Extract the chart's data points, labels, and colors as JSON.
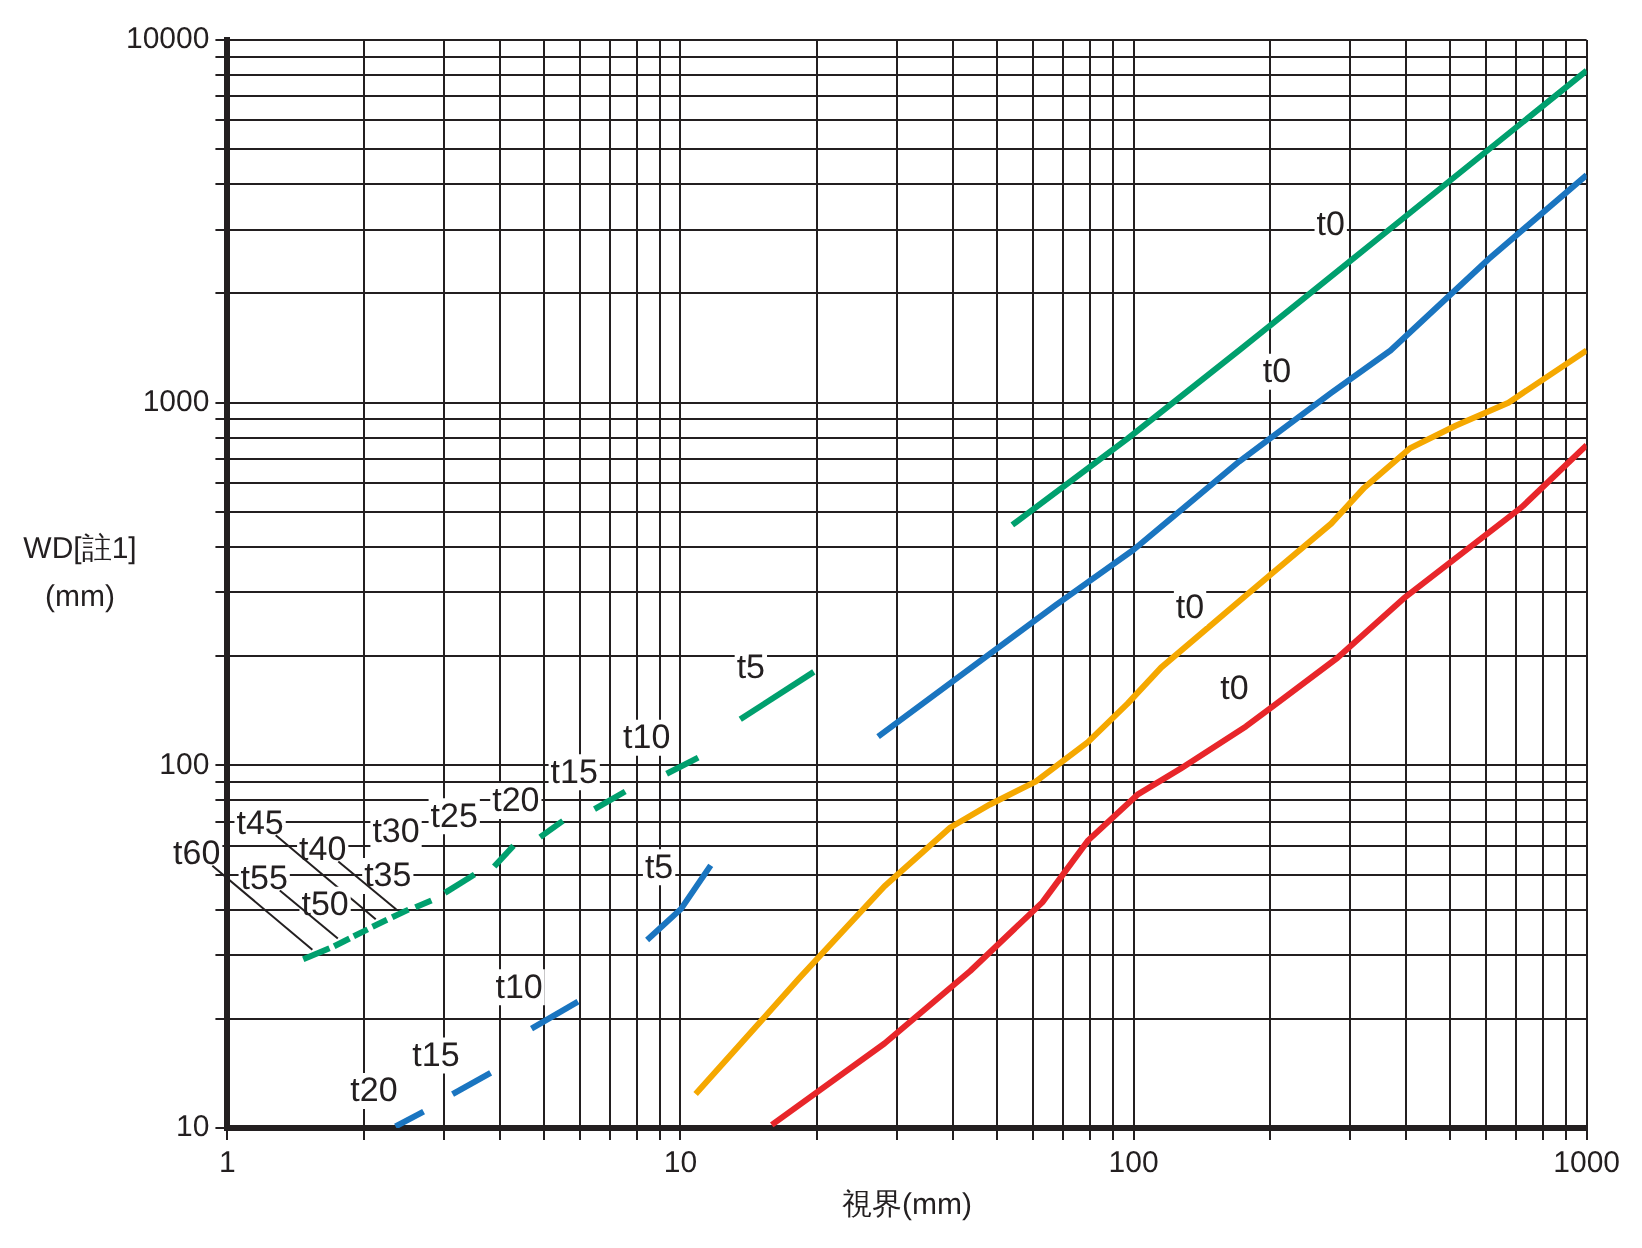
{
  "chart_data": {
    "type": "line",
    "xlabel": "視界(mm)",
    "ylabel": "WD[註1] (mm)",
    "log": "xy",
    "grid": true,
    "line_style": "solid",
    "xlim": [
      1,
      1000
    ],
    "ylim": [
      10,
      10000
    ],
    "xticks": [
      1,
      {
        "value": 2,
        "label": null
      },
      {
        "value": 3,
        "label": null
      },
      {
        "value": 4,
        "label": null
      },
      {
        "value": 5,
        "label": null
      },
      {
        "value": 6,
        "label": null
      },
      {
        "value": 7,
        "label": null
      },
      {
        "value": 8,
        "label": null
      },
      {
        "value": 9,
        "label": null
      },
      10,
      {
        "value": 20,
        "label": null
      },
      {
        "value": 30,
        "label": null
      },
      {
        "value": 40,
        "label": null
      },
      {
        "value": 50,
        "label": null
      },
      {
        "value": 60,
        "label": null
      },
      {
        "value": 70,
        "label": null
      },
      {
        "value": 80,
        "label": null
      },
      {
        "value": 90,
        "label": null
      },
      100,
      {
        "value": 200,
        "label": null
      },
      {
        "value": 300,
        "label": null
      },
      {
        "value": 400,
        "label": null
      },
      {
        "value": 500,
        "label": null
      },
      {
        "value": 600,
        "label": null
      },
      {
        "value": 700,
        "label": null
      },
      {
        "value": 800,
        "label": null
      },
      {
        "value": 900,
        "label": null
      },
      1000
    ],
    "yticks": [
      10,
      {
        "value": 20,
        "label": null
      },
      {
        "value": 30,
        "label": null
      },
      {
        "value": 40,
        "label": null
      },
      {
        "value": 50,
        "label": null
      },
      {
        "value": 60,
        "label": null
      },
      {
        "value": 70,
        "label": null
      },
      {
        "value": 80,
        "label": null
      },
      {
        "value": 90,
        "label": null
      },
      100,
      {
        "value": 200,
        "label": null
      },
      {
        "value": 300,
        "label": null
      },
      {
        "value": 400,
        "label": null
      },
      {
        "value": 500,
        "label": null
      },
      {
        "value": 600,
        "label": null
      },
      {
        "value": 700,
        "label": null
      },
      {
        "value": 800,
        "label": null
      },
      {
        "value": 900,
        "label": null
      },
      1000,
      {
        "value": 2000,
        "label": null
      },
      {
        "value": 3000,
        "label": null
      },
      {
        "value": 4000,
        "label": null
      },
      {
        "value": 5000,
        "label": null
      },
      {
        "value": 6000,
        "label": null
      },
      {
        "value": 7000,
        "label": null
      },
      {
        "value": 8000,
        "label": null
      },
      {
        "value": 9000,
        "label": null
      },
      10000
    ],
    "series": [
      {
        "name": "t0",
        "color": "#00a06e",
        "x": [
          54,
          97,
          171,
          345,
          1000
        ],
        "values": [
          460,
          796,
          1393,
          2822,
          8230
        ]
      },
      {
        "name": "t0",
        "color": "#1a75c0",
        "x": [
          27.3,
          67.2,
          100,
          171,
          273,
          369,
          608,
          1000
        ],
        "values": [
          120,
          276,
          393,
          688,
          1064,
          1393,
          2490,
          4240
        ]
      },
      {
        "name": "t0",
        "color": "#f5a800",
        "x": [
          10.8,
          18.3,
          28.2,
          39.4,
          48.2,
          60.8,
          79.4,
          97,
          115,
          177,
          273,
          323,
          407,
          515,
          672,
          1000
        ],
        "values": [
          12.4,
          25.9,
          46.4,
          67.4,
          78,
          90.2,
          116,
          148,
          186,
          294,
          464,
          583,
          748,
          865,
          1000,
          1393
        ]
      },
      {
        "name": "t0",
        "color": "#e8262a",
        "x": [
          15.9,
          28.2,
          43.6,
          62.9,
          79.4,
          102,
          127,
          177,
          282,
          394,
          719,
          1000
        ],
        "values": [
          10.2,
          17.1,
          27.1,
          41.9,
          62.1,
          83,
          97.9,
          128,
          198,
          288,
          515,
          763
        ]
      },
      {
        "name": "t5",
        "color": "#00a06e",
        "x": [
          13.55,
          19.69
        ],
        "values": [
          134,
          181
        ]
      },
      {
        "name": "t10",
        "color": "#00a06e",
        "x": [
          9.32,
          10.94
        ],
        "values": [
          94.8,
          105
        ]
      },
      {
        "name": "t15",
        "color": "#00a06e",
        "x": [
          6.46,
          7.55
        ],
        "values": [
          75.7,
          84.7
        ]
      },
      {
        "name": "t20",
        "color": "#00a06e",
        "x": [
          4.9,
          5.5
        ],
        "values": [
          63.4,
          70.3
        ]
      },
      {
        "name": "t25",
        "color": "#00a06e",
        "x": [
          3.88,
          4.28
        ],
        "values": [
          52.6,
          60
        ]
      },
      {
        "name": "t30",
        "color": "#00a06e",
        "x": [
          3.02,
          3.51
        ],
        "values": [
          44.5,
          50
        ]
      },
      {
        "name": "t35",
        "color": "#00a06e",
        "x": [
          2.6,
          2.82
        ],
        "values": [
          40.6,
          42.4
        ]
      },
      {
        "name": "t40",
        "color": "#00a06e",
        "x": [
          2.31,
          2.51
        ],
        "values": [
          38.1,
          40
        ]
      },
      {
        "name": "t45",
        "color": "#00a06e",
        "x": [
          2.09,
          2.25
        ],
        "values": [
          35.9,
          37.5
        ]
      },
      {
        "name": "t50",
        "color": "#00a06e",
        "x": [
          1.9,
          2.04
        ],
        "values": [
          33.8,
          35.3
        ]
      },
      {
        "name": "t55",
        "color": "#00a06e",
        "x": [
          1.72,
          1.86
        ],
        "values": [
          31.7,
          33.3
        ]
      },
      {
        "name": "t60",
        "color": "#00a06e",
        "x": [
          1.47,
          1.68
        ],
        "values": [
          29.2,
          31.3
        ]
      },
      {
        "name": "t5",
        "color": "#1a75c0",
        "x": [
          8.44,
          10.03,
          11.66
        ],
        "values": [
          33,
          40.2,
          53
        ]
      },
      {
        "name": "t10",
        "color": "#1a75c0",
        "x": [
          4.69,
          5.94
        ],
        "values": [
          18.8,
          22.3
        ]
      },
      {
        "name": "t15",
        "color": "#1a75c0",
        "x": [
          3.14,
          3.81
        ],
        "values": [
          12.4,
          14.2
        ]
      },
      {
        "name": "t20",
        "color": "#1a75c0",
        "x": [
          2.35,
          2.71
        ],
        "values": [
          10.1,
          11.1
        ]
      }
    ]
  }
}
